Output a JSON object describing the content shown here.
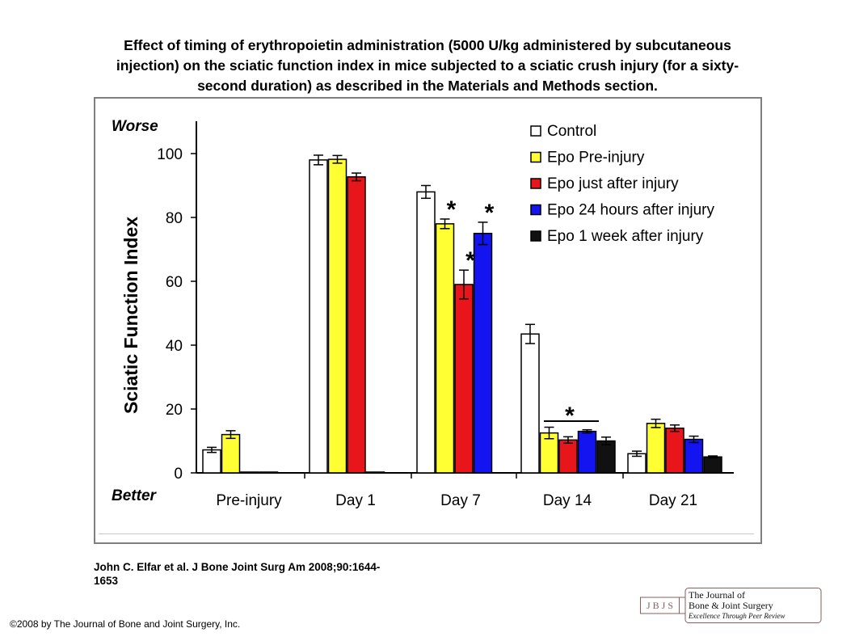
{
  "title_lines": [
    "Effect of timing of erythropoietin administration (5000 U/kg administered by subcutaneous",
    "injection) on the sciatic function index in mice subjected to a sciatic crush injury (for a sixty-",
    "second duration) as described in the Materials and Methods section."
  ],
  "citation_lines": [
    "John C. Elfar et al. J Bone Joint Surg Am 2008;90:1644-",
    "1653"
  ],
  "copyright": "©2008 by The Journal of Bone and Joint Surgery, Inc.",
  "logo": {
    "abbrev": "J B J S",
    "line1": "The Journal of",
    "line2": "Bone & Joint Surgery",
    "tagline": "Excellence Through Peer Review"
  },
  "chart_data": {
    "type": "bar",
    "title": "",
    "ylabel": "Sciatic Function Index",
    "ylim": [
      0,
      110
    ],
    "yticks": [
      0,
      20,
      40,
      60,
      80,
      100
    ],
    "ytick_labels": [
      "0",
      "20",
      "40",
      "60",
      "80",
      "100"
    ],
    "y_top_annotation": "Worse",
    "y_bottom_annotation": "Better",
    "categories": [
      "Pre-injury",
      "Day 1",
      "Day 7",
      "Day 14",
      "Day 21"
    ],
    "series": [
      {
        "name": "Control",
        "color": "#ffffff",
        "values": [
          7.2,
          98,
          88,
          43.5,
          6
        ],
        "errors": [
          0.8,
          1.5,
          2,
          3,
          0.8
        ]
      },
      {
        "name": "Epo Pre-injury",
        "color": "#ffff33",
        "values": [
          12,
          98.2,
          78,
          12.5,
          15.5
        ],
        "errors": [
          1.2,
          1.2,
          1.5,
          1.8,
          1.3
        ]
      },
      {
        "name": "Epo just after injury",
        "color": "#e8161b",
        "values": [
          0.2,
          92.7,
          59,
          10.3,
          14
        ],
        "errors": [
          0,
          1.2,
          4.5,
          1,
          1
        ]
      },
      {
        "name": "Epo 24 hours after injury",
        "color": "#1414f0",
        "values": [
          0.2,
          0.2,
          75,
          13,
          10.5
        ],
        "errors": [
          0,
          0,
          3.5,
          0.5,
          1
        ]
      },
      {
        "name": "Epo 1 week after injury",
        "color": "#111111",
        "values": [
          null,
          null,
          null,
          10,
          5
        ],
        "errors": [
          0,
          0,
          0,
          1.2,
          0.3
        ]
      }
    ],
    "significance_marks": [
      {
        "category": "Day 7",
        "series": "Epo Pre-injury",
        "label": "*"
      },
      {
        "category": "Day 7",
        "series": "Epo just after injury",
        "label": "*"
      },
      {
        "category": "Day 7",
        "series": "Epo 24 hours after injury",
        "label": "*"
      },
      {
        "category": "Day 14",
        "label": "*"
      }
    ],
    "legend_position": "top-right",
    "grid": false
  }
}
